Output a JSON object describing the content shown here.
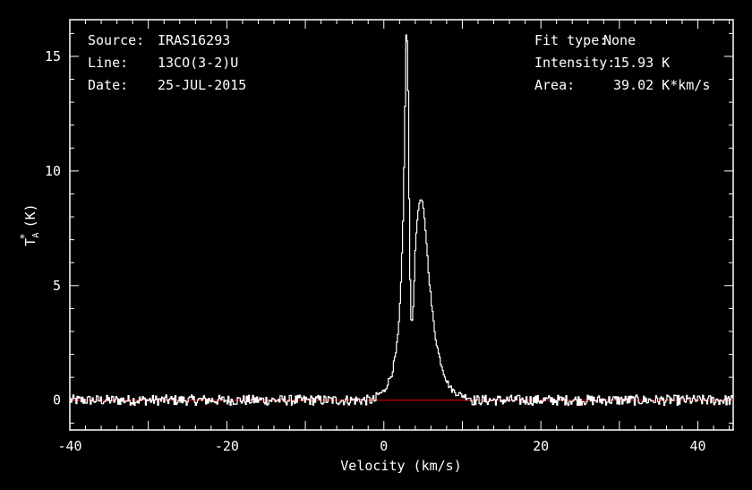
{
  "info": {
    "source_label": "Source:",
    "source_value": "IRAS16293",
    "line_label": "Line:",
    "line_value": "13CO(3-2)U",
    "date_label": "Date:",
    "date_value": "25-JUL-2015",
    "fit_label": "Fit type:",
    "fit_value": "None",
    "intensity_label": "Intensity:",
    "intensity_value": "15.93 K",
    "area_label": "Area:",
    "area_value": "39.02 K*km/s"
  },
  "chart_data": {
    "type": "line",
    "title": "",
    "xlabel": "Velocity (km/s)",
    "ylabel_main": "T",
    "ylabel_sup": "*",
    "ylabel_sub": "A",
    "ylabel_unit": "(K)",
    "xlim": [
      -40,
      44.5
    ],
    "ylim": [
      -1.3,
      16.6
    ],
    "xticks": [
      -40,
      -20,
      0,
      20,
      40
    ],
    "xtick_labels": [
      "-40",
      "-20",
      "0",
      "20",
      "40"
    ],
    "yticks": [
      0,
      5,
      10,
      15
    ],
    "ytick_labels": [
      "0",
      "5",
      "10",
      "15"
    ],
    "grid": false,
    "colors": {
      "spectrum": "#ffffff",
      "baseline": "#ff0000",
      "frame": "#ffffff"
    },
    "baseline": 0,
    "series": [
      {
        "x": [
          -1,
          0,
          0.5,
          1,
          1.5,
          1.8,
          2.1,
          2.4,
          2.6,
          2.8,
          2.95,
          3.05,
          3.15,
          3.3,
          3.45,
          3.6,
          3.8,
          4.0,
          4.3,
          4.6,
          4.8,
          5.0,
          5.3,
          5.6,
          6.0,
          6.5,
          7.0,
          7.5,
          8.0,
          8.5,
          9.0,
          10.0,
          11.0
        ],
        "y": [
          0.2,
          0.4,
          0.8,
          1.2,
          2.1,
          3.0,
          4.8,
          8.0,
          12.0,
          15.93,
          15.5,
          13.0,
          9.0,
          5.0,
          3.3,
          3.5,
          5.2,
          7.0,
          8.3,
          8.75,
          8.7,
          8.3,
          7.2,
          5.8,
          4.2,
          2.8,
          1.9,
          1.3,
          0.8,
          0.5,
          0.35,
          0.2,
          0.1
        ]
      }
    ]
  }
}
